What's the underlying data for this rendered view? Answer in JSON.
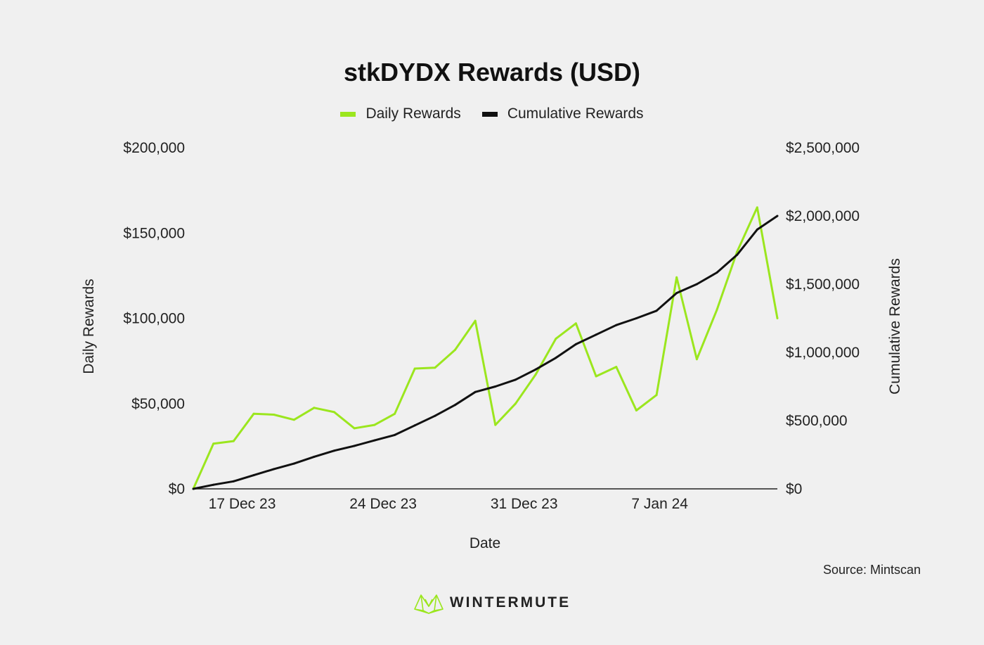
{
  "colors": {
    "daily": "#9be61e",
    "cumulative": "#111111",
    "background": "#f0f0f0"
  },
  "footer": {
    "source": "Source: Mintscan",
    "brand": "WINTERMUTE",
    "brand_icon": "wintermute-logo-icon"
  },
  "chart_data": {
    "type": "line",
    "title": "stkDYDX Rewards (USD)",
    "xlabel": "Date",
    "ylabel_left": "Daily Rewards",
    "ylabel_right": "Cumulative Rewards",
    "legend_position": "top-center",
    "grid": false,
    "x_start": "2023-12-16",
    "x_end": "2024-01-14",
    "x_ticks": [
      "17 Dec 23",
      "24 Dec 23",
      "31 Dec 23",
      "7 Jan 24"
    ],
    "x_tick_dates": [
      "2023-12-17",
      "2023-12-24",
      "2023-12-31",
      "2024-01-07"
    ],
    "ylim_left": [
      0,
      200000
    ],
    "ylim_right": [
      0,
      2500000
    ],
    "y_ticks_left": [
      "$0",
      "$50,000",
      "$100,000",
      "$150,000",
      "$200,000"
    ],
    "y_ticks_right": [
      "$0",
      "$500,000",
      "$1,000,000",
      "$1,500,000",
      "$2,000,000",
      "$2,500,000"
    ],
    "x": [
      "2023-12-16",
      "2023-12-17",
      "2023-12-18",
      "2023-12-19",
      "2023-12-20",
      "2023-12-21",
      "2023-12-22",
      "2023-12-23",
      "2023-12-24",
      "2023-12-25",
      "2023-12-26",
      "2023-12-27",
      "2023-12-28",
      "2023-12-29",
      "2023-12-30",
      "2023-12-31",
      "2024-01-01",
      "2024-01-02",
      "2024-01-03",
      "2024-01-04",
      "2024-01-05",
      "2024-01-06",
      "2024-01-07",
      "2024-01-08",
      "2024-01-09",
      "2024-01-10",
      "2024-01-11",
      "2024-01-12",
      "2024-01-13",
      "2024-01-14"
    ],
    "series": [
      {
        "name": "Daily Rewards",
        "axis": "left",
        "values": [
          0,
          26500,
          28000,
          44000,
          43500,
          40500,
          47500,
          45000,
          35500,
          37500,
          44000,
          70500,
          71000,
          81500,
          98500,
          37500,
          50000,
          67000,
          88000,
          97000,
          66000,
          71500,
          46000,
          55000,
          124000,
          76000,
          105000,
          139000,
          165000,
          100000
        ]
      },
      {
        "name": "Cumulative Rewards",
        "axis": "right",
        "values": [
          0,
          30000,
          55000,
          100000,
          145000,
          185000,
          235000,
          280000,
          315000,
          355000,
          395000,
          465000,
          535000,
          615000,
          710000,
          750000,
          800000,
          875000,
          960000,
          1060000,
          1130000,
          1200000,
          1250000,
          1305000,
          1435000,
          1500000,
          1585000,
          1715000,
          1900000,
          2000000
        ]
      }
    ]
  }
}
